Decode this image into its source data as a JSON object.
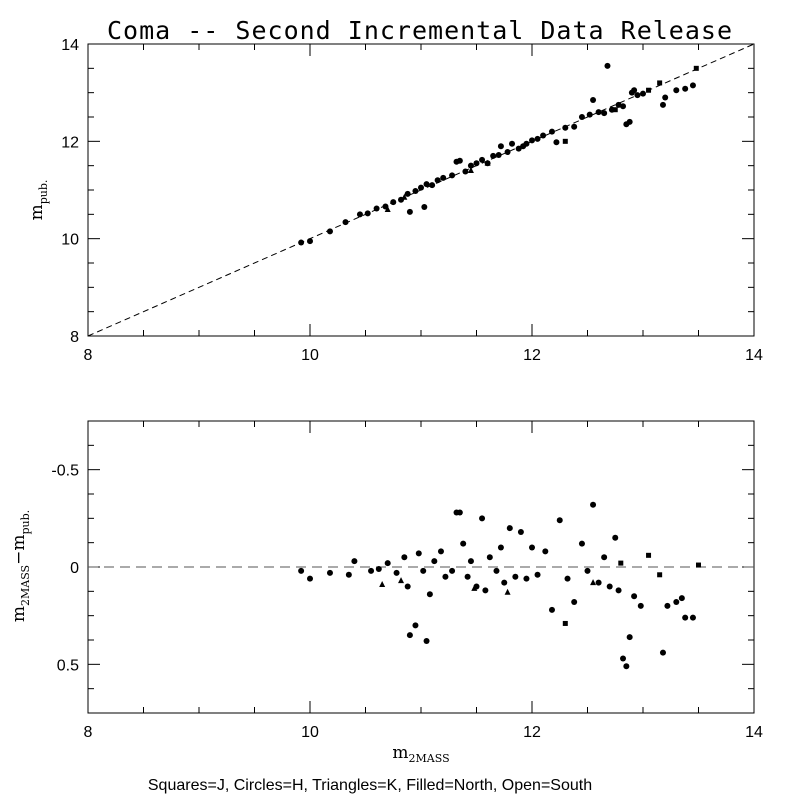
{
  "title": "Coma -- Second Incremental Data Release",
  "footer": "Squares=J, Circles=H, Triangles=K, Filled=North, Open=South",
  "chart_data": [
    {
      "type": "scatter",
      "panel": "top",
      "ylabel_main": "m",
      "ylabel_sub": "pub.",
      "xlim": [
        8,
        14
      ],
      "ylim": [
        8,
        14
      ],
      "xticks": [
        8,
        10,
        12,
        14
      ],
      "yticks": [
        8,
        10,
        12,
        14
      ],
      "xtick_labels": [
        "8",
        "10",
        "12",
        "14"
      ],
      "ytick_labels": [
        "8",
        "10",
        "12",
        "14"
      ],
      "reference_line": "y = x (dashed)",
      "series": [
        {
          "marker": "circle-filled",
          "points": [
            [
              9.92,
              9.92
            ],
            [
              10.0,
              9.95
            ],
            [
              10.18,
              10.15
            ],
            [
              10.32,
              10.34
            ],
            [
              10.45,
              10.5
            ],
            [
              10.52,
              10.52
            ],
            [
              10.6,
              10.62
            ],
            [
              10.68,
              10.66
            ],
            [
              10.75,
              10.75
            ],
            [
              10.82,
              10.8
            ],
            [
              10.88,
              10.92
            ],
            [
              10.9,
              10.55
            ],
            [
              10.95,
              10.98
            ],
            [
              11.0,
              11.05
            ],
            [
              11.03,
              10.65
            ],
            [
              11.05,
              11.12
            ],
            [
              11.1,
              11.1
            ],
            [
              11.15,
              11.2
            ],
            [
              11.2,
              11.25
            ],
            [
              11.28,
              11.3
            ],
            [
              11.32,
              11.58
            ],
            [
              11.35,
              11.6
            ],
            [
              11.4,
              11.38
            ],
            [
              11.45,
              11.5
            ],
            [
              11.5,
              11.55
            ],
            [
              11.55,
              11.62
            ],
            [
              11.6,
              11.55
            ],
            [
              11.65,
              11.7
            ],
            [
              11.7,
              11.72
            ],
            [
              11.72,
              11.9
            ],
            [
              11.78,
              11.78
            ],
            [
              11.82,
              11.95
            ],
            [
              11.88,
              11.85
            ],
            [
              11.92,
              11.9
            ],
            [
              11.95,
              11.95
            ],
            [
              12.0,
              12.02
            ],
            [
              12.05,
              12.05
            ],
            [
              12.1,
              12.12
            ],
            [
              12.18,
              12.2
            ],
            [
              12.22,
              11.98
            ],
            [
              12.3,
              12.28
            ],
            [
              12.38,
              12.3
            ],
            [
              12.45,
              12.5
            ],
            [
              12.52,
              12.55
            ],
            [
              12.55,
              12.85
            ],
            [
              12.6,
              12.6
            ],
            [
              12.65,
              12.58
            ],
            [
              12.68,
              13.55
            ],
            [
              12.72,
              12.65
            ],
            [
              12.78,
              12.75
            ],
            [
              12.82,
              12.72
            ],
            [
              12.85,
              12.35
            ],
            [
              12.88,
              12.4
            ],
            [
              12.9,
              13.0
            ],
            [
              12.92,
              13.05
            ],
            [
              12.95,
              12.95
            ],
            [
              13.0,
              12.98
            ],
            [
              13.18,
              12.75
            ],
            [
              13.2,
              12.9
            ],
            [
              13.3,
              13.05
            ],
            [
              13.38,
              13.08
            ],
            [
              13.45,
              13.15
            ]
          ]
        },
        {
          "marker": "square-filled",
          "points": [
            [
              12.3,
              12.0
            ],
            [
              12.75,
              12.65
            ],
            [
              13.05,
              13.05
            ],
            [
              13.15,
              13.2
            ],
            [
              13.48,
              13.5
            ]
          ]
        },
        {
          "marker": "triangle-filled",
          "points": [
            [
              10.7,
              10.6
            ],
            [
              10.85,
              10.85
            ],
            [
              11.45,
              11.4
            ],
            [
              11.6,
              11.55
            ]
          ]
        }
      ]
    },
    {
      "type": "scatter",
      "panel": "bottom",
      "xlabel_main": "m",
      "xlabel_sub": "2MASS",
      "ylabel_main_a": "m",
      "ylabel_sub_a": "2MASS",
      "ylabel_sep": "−m",
      "ylabel_sub_b": "pub.",
      "xlim": [
        8,
        14
      ],
      "ylim": [
        -0.75,
        0.75
      ],
      "y_inverted": true,
      "xticks": [
        8,
        10,
        12,
        14
      ],
      "yticks": [
        -0.5,
        0,
        0.5
      ],
      "xtick_labels": [
        "8",
        "10",
        "12",
        "14"
      ],
      "ytick_labels": [
        "-0.5",
        "0",
        "0.5"
      ],
      "reference_line": "y = 0 (dashed)",
      "series": [
        {
          "marker": "circle-filled",
          "points": [
            [
              9.92,
              0.02
            ],
            [
              10.0,
              0.06
            ],
            [
              10.18,
              0.03
            ],
            [
              10.35,
              0.04
            ],
            [
              10.4,
              -0.03
            ],
            [
              10.55,
              0.02
            ],
            [
              10.62,
              0.01
            ],
            [
              10.7,
              -0.02
            ],
            [
              10.78,
              0.03
            ],
            [
              10.85,
              -0.05
            ],
            [
              10.88,
              0.1
            ],
            [
              10.9,
              0.35
            ],
            [
              10.95,
              0.3
            ],
            [
              10.98,
              -0.07
            ],
            [
              11.02,
              0.02
            ],
            [
              11.05,
              0.38
            ],
            [
              11.08,
              0.14
            ],
            [
              11.12,
              -0.03
            ],
            [
              11.18,
              -0.08
            ],
            [
              11.22,
              0.05
            ],
            [
              11.28,
              0.02
            ],
            [
              11.32,
              -0.28
            ],
            [
              11.35,
              -0.28
            ],
            [
              11.38,
              -0.12
            ],
            [
              11.42,
              0.05
            ],
            [
              11.45,
              -0.03
            ],
            [
              11.5,
              0.1
            ],
            [
              11.55,
              -0.25
            ],
            [
              11.58,
              0.12
            ],
            [
              11.62,
              -0.05
            ],
            [
              11.68,
              0.02
            ],
            [
              11.72,
              -0.1
            ],
            [
              11.75,
              0.08
            ],
            [
              11.8,
              -0.2
            ],
            [
              11.85,
              0.05
            ],
            [
              11.9,
              -0.18
            ],
            [
              11.95,
              0.06
            ],
            [
              12.0,
              -0.1
            ],
            [
              12.05,
              0.04
            ],
            [
              12.12,
              -0.08
            ],
            [
              12.18,
              0.22
            ],
            [
              12.25,
              -0.24
            ],
            [
              12.32,
              0.06
            ],
            [
              12.38,
              0.18
            ],
            [
              12.45,
              -0.12
            ],
            [
              12.5,
              0.02
            ],
            [
              12.55,
              -0.32
            ],
            [
              12.6,
              0.08
            ],
            [
              12.65,
              -0.05
            ],
            [
              12.7,
              0.1
            ],
            [
              12.75,
              -0.15
            ],
            [
              12.78,
              0.12
            ],
            [
              12.82,
              0.47
            ],
            [
              12.85,
              0.51
            ],
            [
              12.88,
              0.36
            ],
            [
              12.92,
              0.15
            ],
            [
              12.98,
              0.2
            ],
            [
              13.18,
              0.44
            ],
            [
              13.22,
              0.2
            ],
            [
              13.3,
              0.18
            ],
            [
              13.35,
              0.16
            ],
            [
              13.38,
              0.26
            ],
            [
              13.45,
              0.26
            ]
          ]
        },
        {
          "marker": "square-filled",
          "points": [
            [
              12.3,
              0.29
            ],
            [
              12.8,
              -0.02
            ],
            [
              13.05,
              -0.06
            ],
            [
              13.15,
              0.04
            ],
            [
              13.5,
              -0.01
            ]
          ]
        },
        {
          "marker": "triangle-filled",
          "points": [
            [
              10.65,
              0.09
            ],
            [
              10.82,
              0.07
            ],
            [
              11.48,
              0.11
            ],
            [
              11.78,
              0.13
            ],
            [
              12.55,
              0.08
            ]
          ]
        }
      ]
    }
  ]
}
